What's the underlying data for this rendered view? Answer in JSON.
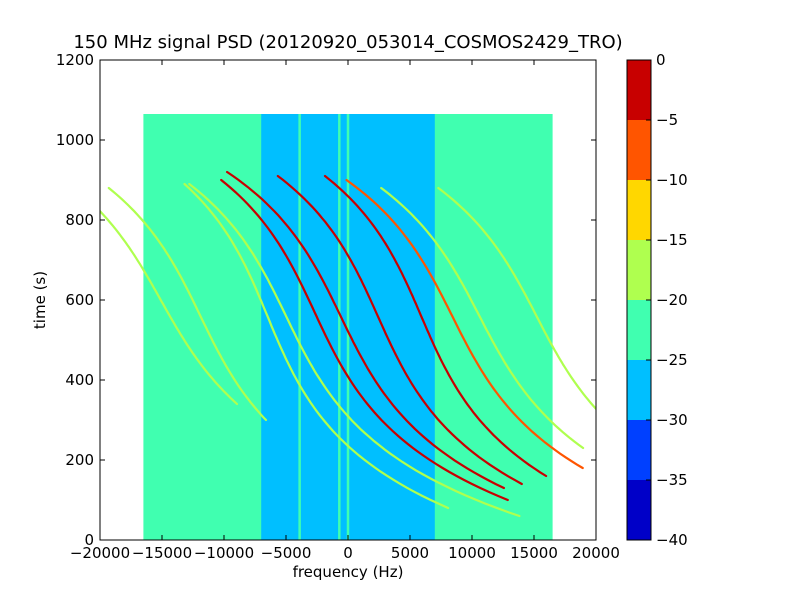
{
  "chart_data": {
    "type": "heatmap",
    "title": "150 MHz signal PSD (20120920_053014_COSMOS2429_TRO)",
    "xlabel": "frequency (Hz)",
    "ylabel": "time (s)",
    "xlim": [
      -20000,
      20000
    ],
    "ylim": [
      0,
      1200
    ],
    "xticks": [
      -20000,
      -15000,
      -10000,
      -5000,
      0,
      5000,
      10000,
      15000,
      20000
    ],
    "xtick_labels": [
      "−20000",
      "−15000",
      "−10000",
      "−5000",
      "0",
      "5000",
      "10000",
      "15000",
      "20000"
    ],
    "yticks": [
      0,
      200,
      400,
      600,
      800,
      1000,
      1200
    ],
    "ytick_labels": [
      "0",
      "200",
      "400",
      "600",
      "800",
      "1000",
      "1200"
    ],
    "grid": false,
    "data_extent": {
      "x": [
        -16500,
        16500
      ],
      "y": [
        0,
        1065
      ]
    },
    "band": {
      "x": [
        -7000,
        7000
      ],
      "level": -27.5
    },
    "background_level": -22.5,
    "colorbar": {
      "levels": [
        -40,
        -35,
        -30,
        -25,
        -20,
        -15,
        -10,
        -5,
        0
      ],
      "tick_labels": [
        "−40",
        "−35",
        "−30",
        "−25",
        "−20",
        "−15",
        "−10",
        "−5",
        "0"
      ],
      "colors": [
        "#0000cc",
        "#0040ff",
        "#00bfff",
        "#40ff b0",
        "#afff4f",
        "#ffd700",
        "#ff5500",
        "#cc0000"
      ]
    },
    "traces": [
      {
        "f0": -15100,
        "t0": 600,
        "b": -16300,
        "a": 1.0,
        "t_start": 340,
        "t_end": 880,
        "level": -17.5
      },
      {
        "f0": -11900,
        "t0": 560,
        "b": -14000,
        "a": 1.0,
        "t_start": 300,
        "t_end": 880,
        "level": -17.5
      },
      {
        "f0": -6500,
        "t0": 560,
        "b": -12000,
        "a": 1.0,
        "t_start": 80,
        "t_end": 890,
        "level": -17.5
      },
      {
        "f0": -5000,
        "t0": 560,
        "b": -14000,
        "a": 1.0,
        "t_start": 60,
        "t_end": 890,
        "level": -17.5
      },
      {
        "f0": -2700,
        "t0": 570,
        "b": -13500,
        "a": 1.0,
        "t_start": 100,
        "t_end": 900,
        "level": -2.5
      },
      {
        "f0": -600,
        "t0": 560,
        "b": -14000,
        "a": 1.0,
        "t_start": 130,
        "t_end": 920,
        "level": -2.5
      },
      {
        "f0": 2400,
        "t0": 560,
        "b": -13000,
        "a": 1.0,
        "t_start": 140,
        "t_end": 910,
        "level": -2.5
      },
      {
        "f0": 5900,
        "t0": 560,
        "b": -12500,
        "a": 1.0,
        "t_start": 160,
        "t_end": 910,
        "level": -2.5
      },
      {
        "f0": 8400,
        "t0": 560,
        "b": -14500,
        "a": 1.0,
        "t_start": 180,
        "t_end": 900,
        "level": -7.5
      },
      {
        "f0": 10600,
        "t0": 560,
        "b": -15000,
        "a": 1.0,
        "t_start": 230,
        "t_end": 880,
        "level": -17.5
      },
      {
        "f0": 15200,
        "t0": 560,
        "b": -15000,
        "a": 1.0,
        "t_start": 300,
        "t_end": 880,
        "level": -17.5
      }
    ],
    "vertical_lines": [
      {
        "x": -3900,
        "level": -22.5
      },
      {
        "x": -700,
        "level": -22.5
      },
      {
        "x": 0,
        "level": -22.5
      }
    ]
  }
}
